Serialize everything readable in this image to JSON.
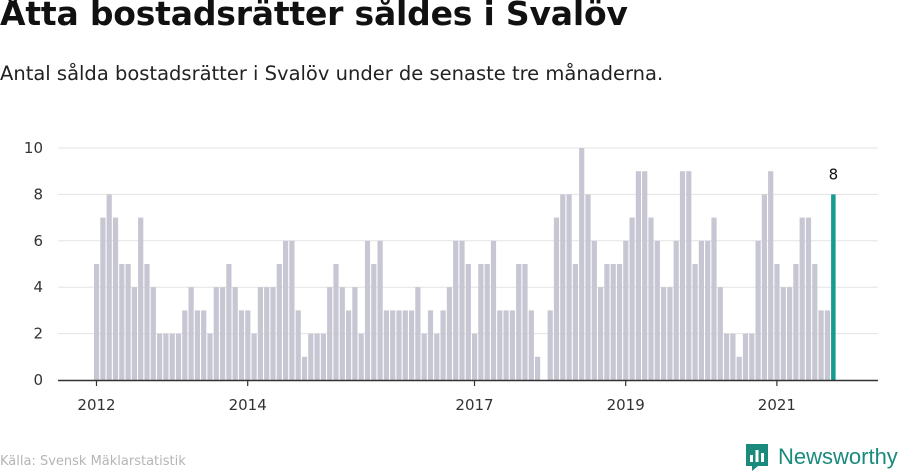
{
  "title": "Åtta bostadsrätter såldes i Svalöv",
  "subtitle": "Antal sålda bostadsrätter i Svalöv under de senaste tre månaderna.",
  "source": "Källa: Svensk Mäklarstatistik",
  "brand": {
    "name": "Newsworthy",
    "icon": "newsworthy-logo-icon",
    "color": "#1a8a7d"
  },
  "colors": {
    "bar": "#c7c6d3",
    "highlight": "#159b8f",
    "grid": "#e3e3e3",
    "axis": "#333333"
  },
  "chart_data": {
    "type": "bar",
    "ylim": [
      0,
      10
    ],
    "yticks": [
      0,
      2,
      4,
      6,
      8,
      10
    ],
    "xticks": [
      {
        "label": "2012",
        "index": 0
      },
      {
        "label": "2014",
        "index": 24
      },
      {
        "label": "2017",
        "index": 60
      },
      {
        "label": "2019",
        "index": 84
      },
      {
        "label": "2021",
        "index": 108
      }
    ],
    "values": [
      5,
      7,
      8,
      7,
      5,
      5,
      4,
      7,
      5,
      4,
      2,
      2,
      2,
      2,
      3,
      4,
      3,
      3,
      2,
      4,
      4,
      5,
      4,
      3,
      3,
      2,
      4,
      4,
      4,
      5,
      6,
      6,
      3,
      1,
      2,
      2,
      2,
      4,
      5,
      4,
      3,
      4,
      2,
      6,
      5,
      6,
      3,
      3,
      3,
      3,
      3,
      4,
      2,
      3,
      2,
      3,
      4,
      6,
      6,
      5,
      2,
      5,
      5,
      6,
      3,
      3,
      3,
      5,
      5,
      3,
      1,
      0,
      3,
      7,
      8,
      8,
      5,
      10,
      8,
      6,
      4,
      5,
      5,
      5,
      6,
      7,
      9,
      9,
      7,
      6,
      4,
      4,
      6,
      9,
      9,
      5,
      6,
      6,
      7,
      4,
      2,
      2,
      1,
      2,
      2,
      6,
      8,
      9,
      5,
      4,
      4,
      5,
      7,
      7,
      5,
      3,
      3,
      8
    ],
    "highlight_index": 117,
    "highlight_label": "8"
  }
}
